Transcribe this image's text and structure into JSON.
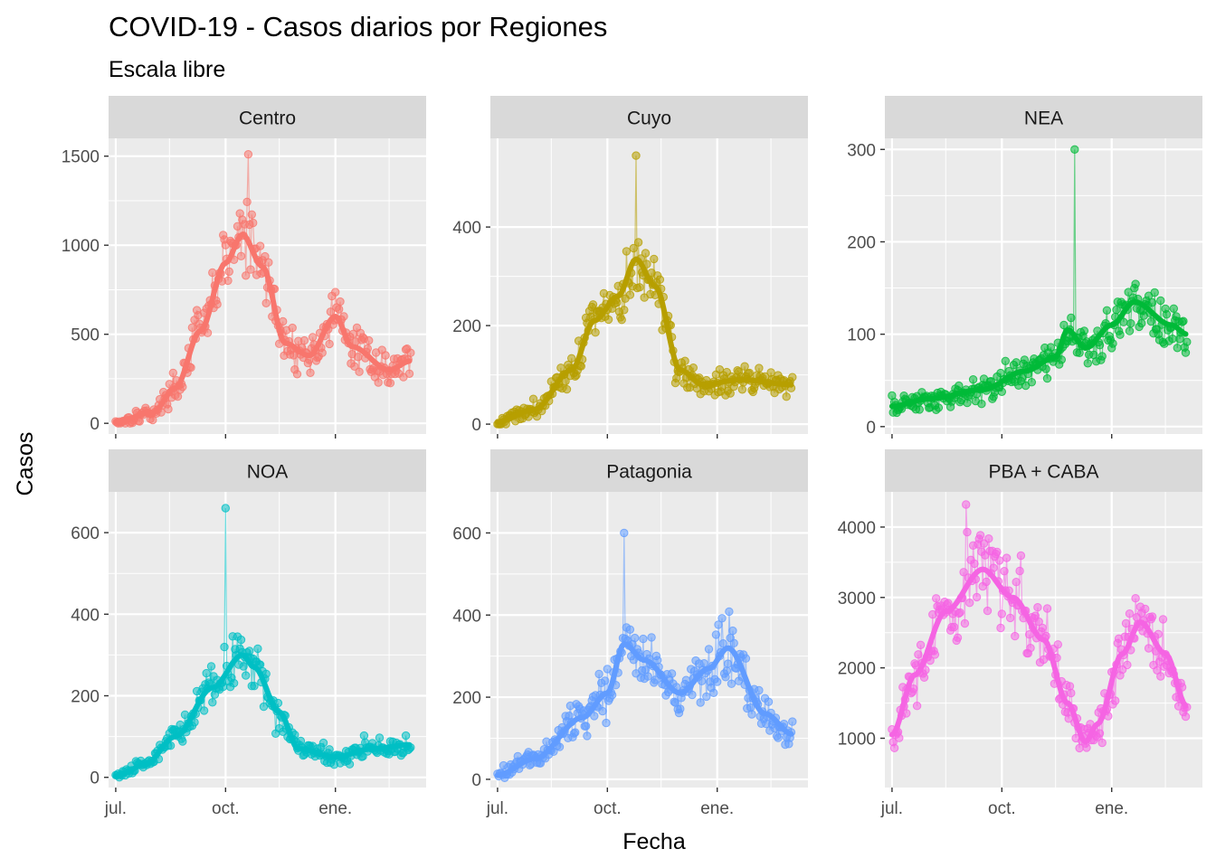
{
  "chart_data": {
    "type": "line",
    "title": "COVID-19 - Casos diarios por Regiones",
    "subtitle": "Escala libre",
    "xlabel": "Fecha",
    "ylabel": "Casos",
    "x_range": [
      "2020-06-25",
      "2021-03-18"
    ],
    "x_ticks": [
      {
        "date": "2020-07-01",
        "label": "jul."
      },
      {
        "date": "2020-10-01",
        "label": "oct."
      },
      {
        "date": "2021-01-01",
        "label": "ene."
      }
    ],
    "x_minor_ticks": [
      "2020-08-15",
      "2020-11-15",
      "2021-02-15"
    ],
    "layout": "facet grid, 3 columns x 2 rows, free y scales, shared x axis",
    "background": "#EBEBEB",
    "grid": true,
    "legend": "none",
    "series": [
      {
        "name": "Centro",
        "color": "#F8766D",
        "ylim": [
          -60,
          1600
        ],
        "yticks": [
          0,
          500,
          1000,
          1500
        ],
        "trend_knots": [
          [
            "2020-07-01",
            10
          ],
          [
            "2020-08-01",
            60
          ],
          [
            "2020-08-20",
            200
          ],
          [
            "2020-09-10",
            520
          ],
          [
            "2020-10-01",
            900
          ],
          [
            "2020-10-15",
            1060
          ],
          [
            "2020-11-01",
            880
          ],
          [
            "2020-11-20",
            450
          ],
          [
            "2020-12-10",
            380
          ],
          [
            "2021-01-01",
            600
          ],
          [
            "2021-01-15",
            430
          ],
          [
            "2021-02-15",
            300
          ],
          [
            "2021-03-05",
            350
          ]
        ],
        "observed": {
          "min": 0,
          "max": 1510,
          "peak_date": "2020-10-20"
        }
      },
      {
        "name": "Cuyo",
        "color": "#B79F00",
        "ylim": [
          -20,
          580
        ],
        "yticks": [
          0,
          200,
          400
        ],
        "trend_knots": [
          [
            "2020-07-01",
            5
          ],
          [
            "2020-08-01",
            30
          ],
          [
            "2020-09-01",
            110
          ],
          [
            "2020-09-20",
            210
          ],
          [
            "2020-10-10",
            260
          ],
          [
            "2020-10-25",
            335
          ],
          [
            "2020-11-10",
            280
          ],
          [
            "2020-12-01",
            110
          ],
          [
            "2020-12-20",
            80
          ],
          [
            "2021-01-20",
            90
          ],
          [
            "2021-03-05",
            80
          ]
        ],
        "observed": {
          "min": 0,
          "max": 545,
          "peak_date": "2020-10-25"
        }
      },
      {
        "name": "NEA",
        "color": "#00BA38",
        "ylim": [
          -8,
          312
        ],
        "yticks": [
          0,
          100,
          200,
          300
        ],
        "trend_knots": [
          [
            "2020-07-01",
            22
          ],
          [
            "2020-08-01",
            30
          ],
          [
            "2020-09-15",
            40
          ],
          [
            "2020-10-20",
            60
          ],
          [
            "2020-11-15",
            75
          ],
          [
            "2020-11-25",
            105
          ],
          [
            "2020-12-10",
            85
          ],
          [
            "2021-01-01",
            110
          ],
          [
            "2021-01-20",
            135
          ],
          [
            "2021-02-20",
            110
          ],
          [
            "2021-03-05",
            100
          ]
        ],
        "observed": {
          "min": 5,
          "max": 300,
          "peak_date": "2020-12-01"
        }
      },
      {
        "name": "NOA",
        "color": "#00BFC4",
        "ylim": [
          -25,
          700
        ],
        "yticks": [
          0,
          200,
          400,
          600
        ],
        "trend_knots": [
          [
            "2020-07-01",
            3
          ],
          [
            "2020-07-25",
            30
          ],
          [
            "2020-08-20",
            100
          ],
          [
            "2020-09-20",
            220
          ],
          [
            "2020-10-15",
            300
          ],
          [
            "2020-10-25",
            270
          ],
          [
            "2020-11-15",
            160
          ],
          [
            "2020-12-01",
            70
          ],
          [
            "2021-01-01",
            50
          ],
          [
            "2021-02-01",
            70
          ],
          [
            "2021-03-05",
            80
          ]
        ],
        "observed": {
          "min": 0,
          "max": 660,
          "peak_date": "2020-10-01"
        }
      },
      {
        "name": "Patagonia",
        "color": "#619CFF",
        "ylim": [
          -20,
          700
        ],
        "yticks": [
          0,
          200,
          400,
          600
        ],
        "trend_knots": [
          [
            "2020-07-01",
            10
          ],
          [
            "2020-08-01",
            50
          ],
          [
            "2020-09-10",
            150
          ],
          [
            "2020-10-01",
            210
          ],
          [
            "2020-10-15",
            330
          ],
          [
            "2020-11-01",
            290
          ],
          [
            "2020-12-01",
            210
          ],
          [
            "2020-12-25",
            270
          ],
          [
            "2021-01-10",
            320
          ],
          [
            "2021-02-10",
            160
          ],
          [
            "2021-03-05",
            110
          ]
        ],
        "observed": {
          "min": 0,
          "max": 600,
          "peak_date": "2020-10-15"
        }
      },
      {
        "name": "PBA + CABA",
        "color": "#F564E3",
        "ylim": [
          300,
          4500
        ],
        "yticks": [
          1000,
          2000,
          3000,
          4000
        ],
        "trend_knots": [
          [
            "2020-07-01",
            1050
          ],
          [
            "2020-07-20",
            1900
          ],
          [
            "2020-08-15",
            2800
          ],
          [
            "2020-09-15",
            3400
          ],
          [
            "2020-10-10",
            3000
          ],
          [
            "2020-11-05",
            2400
          ],
          [
            "2020-11-25",
            1500
          ],
          [
            "2020-12-10",
            950
          ],
          [
            "2020-12-20",
            1200
          ],
          [
            "2021-01-10",
            2200
          ],
          [
            "2021-01-25",
            2650
          ],
          [
            "2021-02-15",
            2200
          ],
          [
            "2021-03-05",
            1450
          ]
        ],
        "observed": {
          "min": 400,
          "max": 4320,
          "peak_date": "2020-09-01"
        }
      }
    ]
  }
}
